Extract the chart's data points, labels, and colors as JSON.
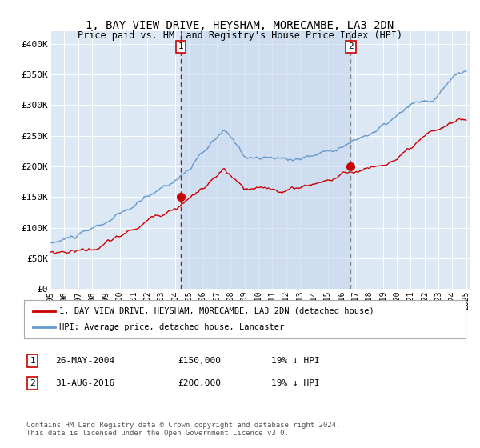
{
  "title": "1, BAY VIEW DRIVE, HEYSHAM, MORECAMBE, LA3 2DN",
  "subtitle": "Price paid vs. HM Land Registry's House Price Index (HPI)",
  "plot_bg_color": "#dce9f5",
  "red_line_label": "1, BAY VIEW DRIVE, HEYSHAM, MORECAMBE, LA3 2DN (detached house)",
  "blue_line_label": "HPI: Average price, detached house, Lancaster",
  "transactions": [
    {
      "id": 1,
      "date": "26-MAY-2004",
      "price": 150000,
      "pct": "19%",
      "dir": "↓"
    },
    {
      "id": 2,
      "date": "31-AUG-2016",
      "price": 200000,
      "pct": "19%",
      "dir": "↓"
    }
  ],
  "transaction_years": [
    2004.4,
    2016.67
  ],
  "transaction_prices": [
    150000,
    200000
  ],
  "footer": "Contains HM Land Registry data © Crown copyright and database right 2024.\nThis data is licensed under the Open Government Licence v3.0.",
  "ylim": [
    0,
    420000
  ],
  "yticks": [
    0,
    50000,
    100000,
    150000,
    200000,
    250000,
    300000,
    350000,
    400000
  ],
  "start_year": 1995,
  "end_year": 2025,
  "vline1_color": "#cc0000",
  "vline2_color": "#888888",
  "shade_color": "#c5d8ee",
  "hpi_color": "#6699cc",
  "prop_color": "#cc0000"
}
